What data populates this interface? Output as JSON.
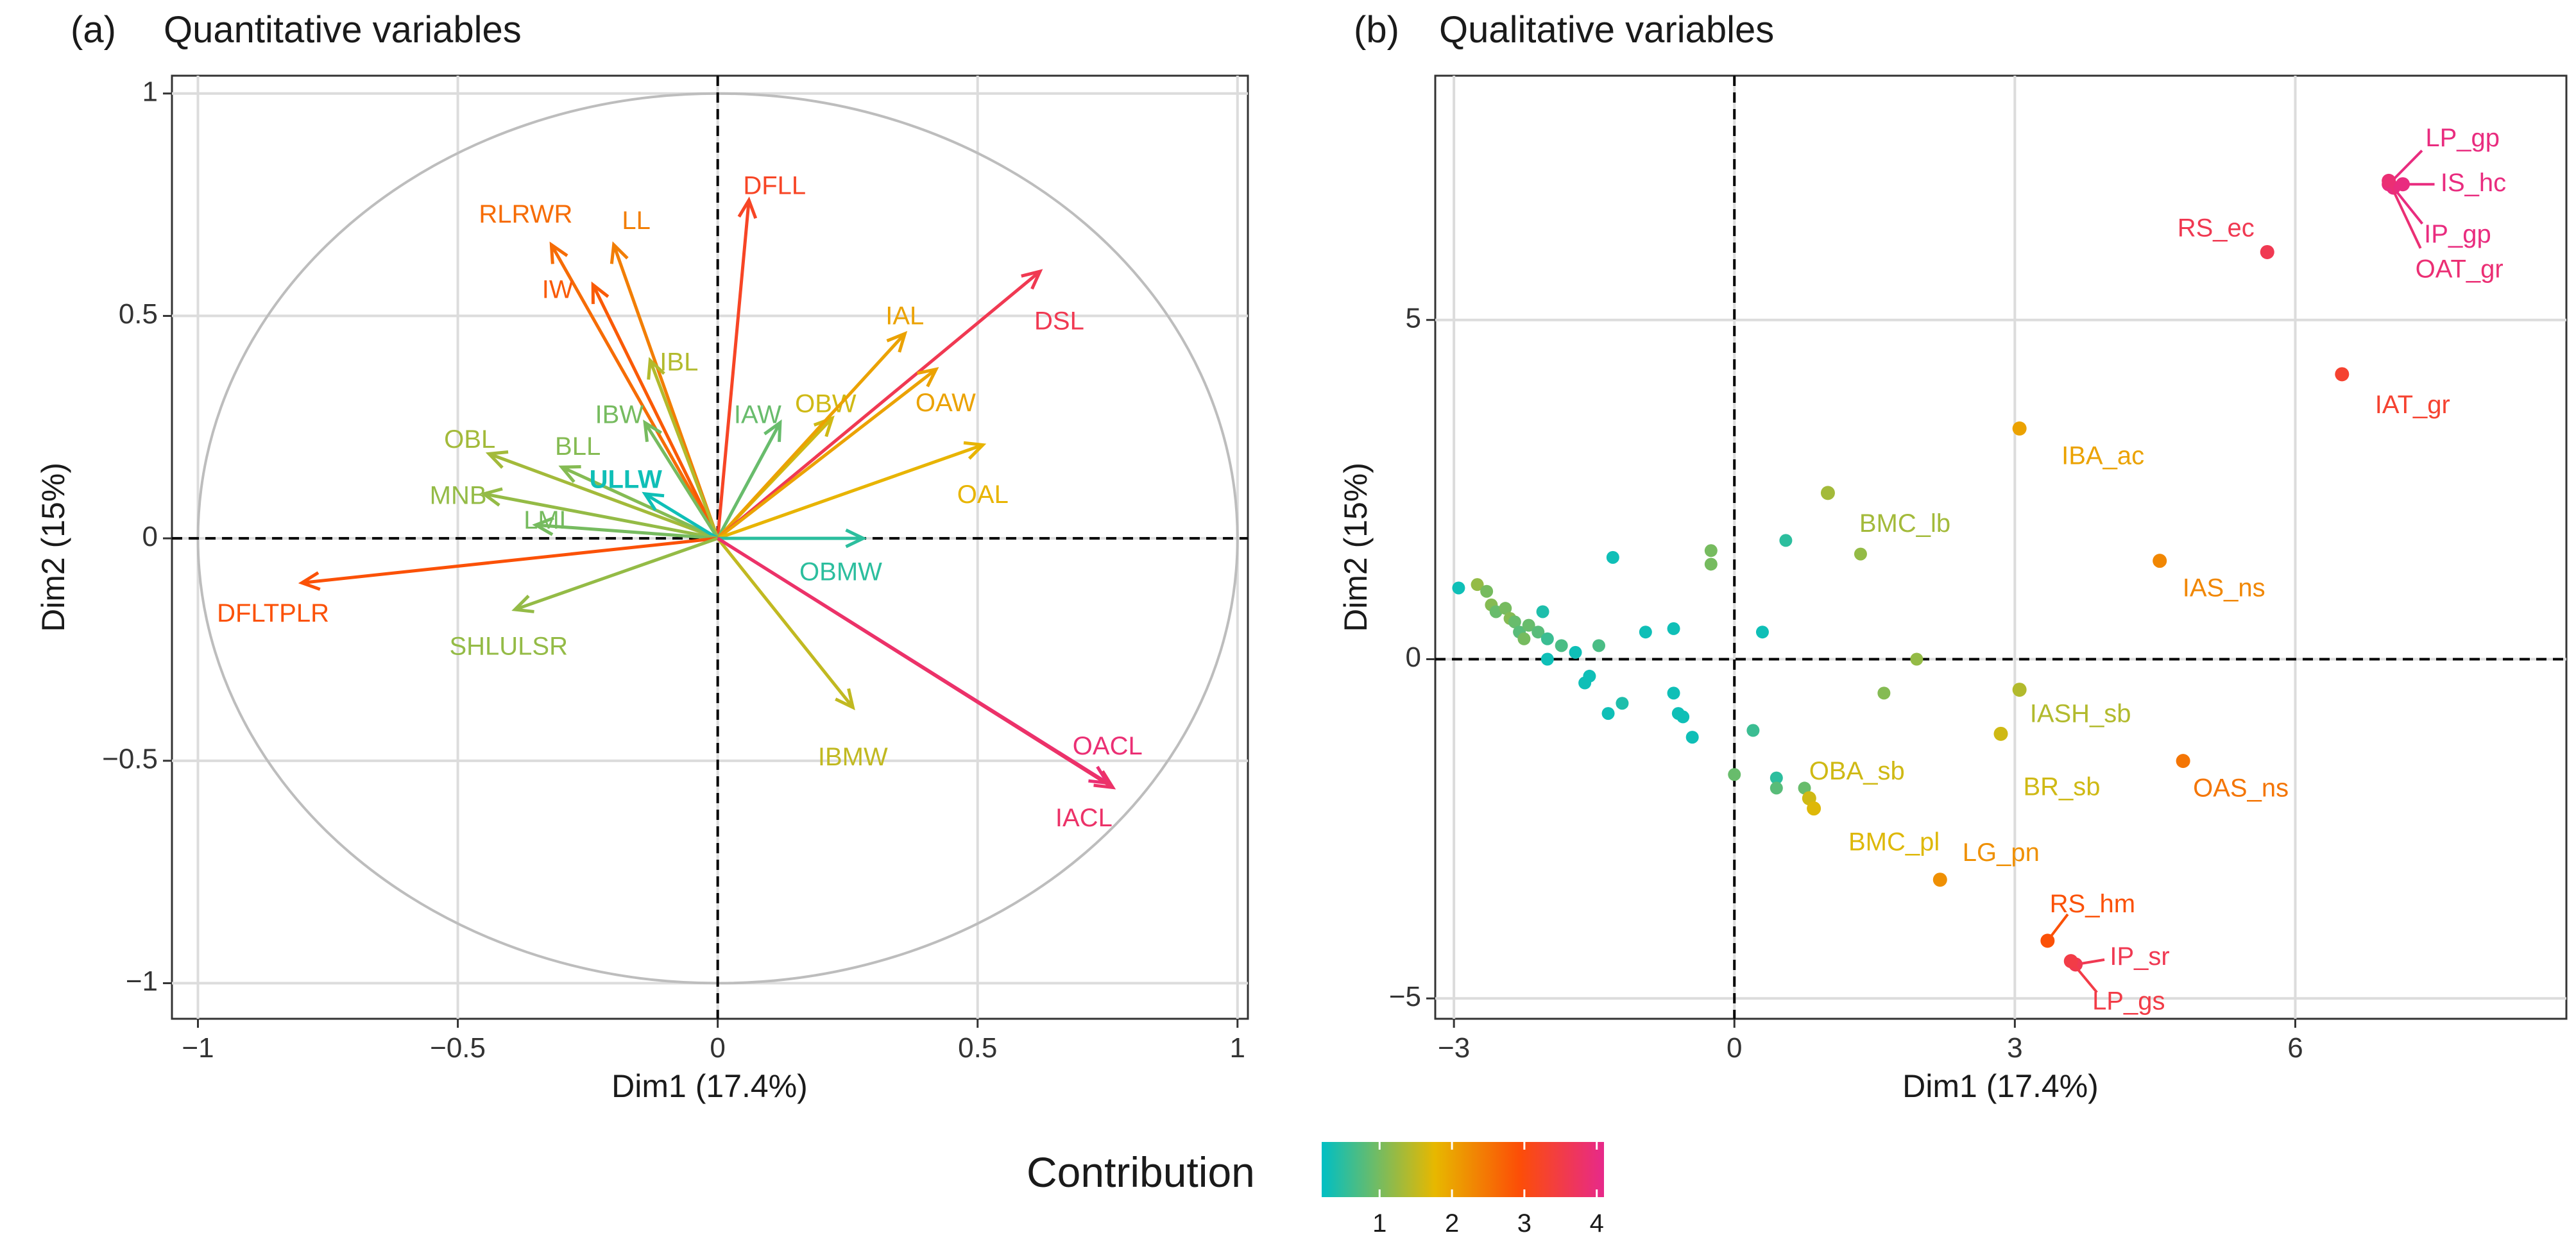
{
  "chart_data": [
    {
      "type": "scatter",
      "panel_tag": "(a)",
      "title": "Quantitative variables",
      "xlabel": "Dim1 (17.4%)",
      "ylabel": "Dim2 (15%)",
      "xlim": [
        -1.05,
        1.02
      ],
      "ylim": [
        -1.08,
        1.04
      ],
      "xticks": [
        -1,
        -0.5,
        0,
        0.5,
        1
      ],
      "xtick_labels": [
        "−1",
        "−0.5",
        "0",
        "0.5",
        "1"
      ],
      "yticks": [
        -1,
        -0.5,
        0,
        0.5,
        1
      ],
      "ytick_labels": [
        "−1",
        "−0.5",
        "0",
        "0.5",
        "1"
      ],
      "grid": true,
      "correlation_circle": true,
      "arrows": [
        {
          "name": "DFLL",
          "x": 0.06,
          "y": 0.76,
          "contribution": 3.2
        },
        {
          "name": "RLRWR",
          "x": -0.32,
          "y": 0.66,
          "contribution": 2.6
        },
        {
          "name": "LL",
          "x": -0.2,
          "y": 0.66,
          "contribution": 2.4
        },
        {
          "name": "IW",
          "x": -0.24,
          "y": 0.57,
          "contribution": 2.8
        },
        {
          "name": "IBL",
          "x": -0.13,
          "y": 0.4,
          "contribution": 1.4
        },
        {
          "name": "IBW",
          "x": -0.14,
          "y": 0.26,
          "contribution": 1.0
        },
        {
          "name": "IAW",
          "x": 0.12,
          "y": 0.26,
          "contribution": 0.9
        },
        {
          "name": "OBW",
          "x": 0.22,
          "y": 0.27,
          "contribution": 1.6
        },
        {
          "name": "IAL",
          "x": 0.36,
          "y": 0.46,
          "contribution": 2.0
        },
        {
          "name": "DSL",
          "x": 0.62,
          "y": 0.6,
          "contribution": 3.6
        },
        {
          "name": "OAW",
          "x": 0.42,
          "y": 0.38,
          "contribution": 2.0
        },
        {
          "name": "OAL",
          "x": 0.51,
          "y": 0.21,
          "contribution": 1.8
        },
        {
          "name": "OBL",
          "x": -0.44,
          "y": 0.19,
          "contribution": 1.3
        },
        {
          "name": "BLL",
          "x": -0.3,
          "y": 0.16,
          "contribution": 1.1
        },
        {
          "name": "ULLW",
          "x": -0.14,
          "y": 0.1,
          "contribution": 0.3
        },
        {
          "name": "MNB",
          "x": -0.45,
          "y": 0.1,
          "contribution": 1.2
        },
        {
          "name": "LML",
          "x": -0.35,
          "y": 0.03,
          "contribution": 1.0
        },
        {
          "name": "OBMW",
          "x": 0.28,
          "y": 0.0,
          "contribution": 0.5
        },
        {
          "name": "DFLTPLR",
          "x": -0.8,
          "y": -0.1,
          "contribution": 2.9
        },
        {
          "name": "SHLULSR",
          "x": -0.39,
          "y": -0.16,
          "contribution": 1.2
        },
        {
          "name": "IBMW",
          "x": 0.26,
          "y": -0.38,
          "contribution": 1.5
        },
        {
          "name": "OACL",
          "x": 0.75,
          "y": -0.55,
          "contribution": 3.9
        },
        {
          "name": "IACL",
          "x": 0.76,
          "y": -0.56,
          "contribution": 3.8
        }
      ]
    },
    {
      "type": "scatter",
      "panel_tag": "(b)",
      "title": "Qualitative variables",
      "xlabel": "Dim1 (17.4%)",
      "ylabel": "Dim2 (15%)",
      "xlim": [
        -3.2,
        8.9
      ],
      "ylim": [
        -5.3,
        8.6
      ],
      "xticks": [
        -3,
        0,
        3,
        6
      ],
      "xtick_labels": [
        "−3",
        "0",
        "3",
        "6"
      ],
      "yticks": [
        -5,
        0,
        5
      ],
      "ytick_labels": [
        "−5",
        "0",
        "5"
      ],
      "grid": true,
      "labeled_points": [
        {
          "name": "LP_gp",
          "x": 7.0,
          "y": 7.0,
          "contribution": 4.0
        },
        {
          "name": "IS_hc",
          "x": 7.15,
          "y": 7.0,
          "contribution": 4.0
        },
        {
          "name": "IP_gp",
          "x": 7.05,
          "y": 6.95,
          "contribution": 4.0
        },
        {
          "name": "OAT_gr",
          "x": 7.0,
          "y": 7.05,
          "contribution": 3.9
        },
        {
          "name": "RS_ec",
          "x": 5.7,
          "y": 6.0,
          "contribution": 3.6
        },
        {
          "name": "IAT_gr",
          "x": 6.5,
          "y": 4.2,
          "contribution": 3.3
        },
        {
          "name": "IBA_ac",
          "x": 3.05,
          "y": 3.4,
          "contribution": 2.0
        },
        {
          "name": "BMC_lb",
          "x": 1.0,
          "y": 2.45,
          "contribution": 1.3
        },
        {
          "name": "IAS_ns",
          "x": 4.55,
          "y": 1.45,
          "contribution": 2.3
        },
        {
          "name": "IASH_sb",
          "x": 3.05,
          "y": -0.45,
          "contribution": 1.4
        },
        {
          "name": "BR_sb",
          "x": 2.85,
          "y": -1.1,
          "contribution": 1.6
        },
        {
          "name": "OBA_sb",
          "x": 0.8,
          "y": -2.05,
          "contribution": 1.6
        },
        {
          "name": "OAS_ns",
          "x": 4.8,
          "y": -1.5,
          "contribution": 2.5
        },
        {
          "name": "BMC_pl",
          "x": 0.85,
          "y": -2.2,
          "contribution": 1.7
        },
        {
          "name": "LG_pn",
          "x": 2.2,
          "y": -3.25,
          "contribution": 2.2
        },
        {
          "name": "RS_hm",
          "x": 3.35,
          "y": -4.15,
          "contribution": 2.9
        },
        {
          "name": "IP_sr",
          "x": 3.65,
          "y": -4.5,
          "contribution": 3.6
        },
        {
          "name": "LP_gs",
          "x": 3.6,
          "y": -4.45,
          "contribution": 3.5
        }
      ],
      "unlabeled_points": [
        {
          "x": -2.95,
          "y": 1.05,
          "contribution": 0.3
        },
        {
          "x": -2.75,
          "y": 1.1,
          "contribution": 1.2
        },
        {
          "x": -2.65,
          "y": 1.0,
          "contribution": 1.0
        },
        {
          "x": -2.6,
          "y": 0.8,
          "contribution": 1.1
        },
        {
          "x": -2.55,
          "y": 0.7,
          "contribution": 0.9
        },
        {
          "x": -2.45,
          "y": 0.75,
          "contribution": 1.0
        },
        {
          "x": -2.4,
          "y": 0.6,
          "contribution": 1.1
        },
        {
          "x": -2.35,
          "y": 0.55,
          "contribution": 0.9
        },
        {
          "x": -2.3,
          "y": 0.4,
          "contribution": 0.8
        },
        {
          "x": -2.25,
          "y": 0.3,
          "contribution": 1.0
        },
        {
          "x": -2.2,
          "y": 0.5,
          "contribution": 0.9
        },
        {
          "x": -2.1,
          "y": 0.4,
          "contribution": 0.8
        },
        {
          "x": -2.05,
          "y": 0.7,
          "contribution": 0.4
        },
        {
          "x": -2.0,
          "y": 0.3,
          "contribution": 0.6
        },
        {
          "x": -2.0,
          "y": 0.0,
          "contribution": 0.3
        },
        {
          "x": -1.85,
          "y": 0.2,
          "contribution": 0.7
        },
        {
          "x": -1.7,
          "y": 0.1,
          "contribution": 0.3
        },
        {
          "x": -1.6,
          "y": -0.35,
          "contribution": 0.3
        },
        {
          "x": -1.55,
          "y": -0.25,
          "contribution": 0.3
        },
        {
          "x": -1.45,
          "y": 0.2,
          "contribution": 0.7
        },
        {
          "x": -1.35,
          "y": -0.8,
          "contribution": 0.3
        },
        {
          "x": -1.3,
          "y": 1.5,
          "contribution": 0.3
        },
        {
          "x": -1.2,
          "y": -0.65,
          "contribution": 0.4
        },
        {
          "x": -0.95,
          "y": 0.4,
          "contribution": 0.3
        },
        {
          "x": -0.65,
          "y": 0.45,
          "contribution": 0.3
        },
        {
          "x": -0.65,
          "y": -0.5,
          "contribution": 0.3
        },
        {
          "x": -0.6,
          "y": -0.8,
          "contribution": 0.3
        },
        {
          "x": -0.55,
          "y": -0.85,
          "contribution": 0.3
        },
        {
          "x": -0.45,
          "y": -1.15,
          "contribution": 0.3
        },
        {
          "x": -0.25,
          "y": 1.6,
          "contribution": 1.0
        },
        {
          "x": -0.25,
          "y": 1.4,
          "contribution": 1.0
        },
        {
          "x": 0.0,
          "y": -1.7,
          "contribution": 0.9
        },
        {
          "x": 0.2,
          "y": -1.05,
          "contribution": 0.6
        },
        {
          "x": 0.3,
          "y": 0.4,
          "contribution": 0.3
        },
        {
          "x": 0.45,
          "y": -1.75,
          "contribution": 0.5
        },
        {
          "x": 0.45,
          "y": -1.9,
          "contribution": 0.8
        },
        {
          "x": 0.55,
          "y": 1.75,
          "contribution": 0.5
        },
        {
          "x": 0.75,
          "y": -1.9,
          "contribution": 0.9
        },
        {
          "x": 1.35,
          "y": 1.55,
          "contribution": 1.2
        },
        {
          "x": 1.6,
          "y": -0.5,
          "contribution": 1.1
        },
        {
          "x": 1.95,
          "y": 0.0,
          "contribution": 1.2
        }
      ]
    }
  ],
  "legend": {
    "title": "Contribution",
    "range": [
      0.2,
      4.1
    ],
    "ticks": [
      1,
      2,
      3,
      4
    ],
    "tick_labels": [
      "1",
      "2",
      "3",
      "4"
    ],
    "colors": [
      "#00bfc4",
      "#e7b800",
      "#fc4e07",
      "#e7298a"
    ]
  }
}
